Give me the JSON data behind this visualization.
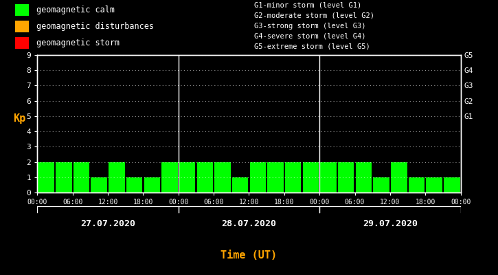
{
  "background_color": "#000000",
  "plot_bg_color": "#000000",
  "bar_color_calm": "#00ff00",
  "bar_color_disturbance": "#ffa500",
  "bar_color_storm": "#ff0000",
  "text_color": "#ffffff",
  "ylabel_color": "#ffa500",
  "xlabel_color": "#ffa500",
  "grid_color": "#ffffff",
  "separator_color": "#ffffff",
  "days": [
    "27.07.2020",
    "28.07.2020",
    "29.07.2020"
  ],
  "kp_values": [
    [
      2,
      2,
      2,
      1,
      2,
      1,
      1,
      2
    ],
    [
      2,
      2,
      2,
      1,
      2,
      2,
      2,
      2
    ],
    [
      2,
      2,
      2,
      1,
      2,
      1,
      1,
      1
    ]
  ],
  "ylim": [
    0,
    9
  ],
  "yticks": [
    0,
    1,
    2,
    3,
    4,
    5,
    6,
    7,
    8,
    9
  ],
  "right_yticks": [
    5,
    6,
    7,
    8,
    9
  ],
  "right_ylabels": [
    "G1",
    "G2",
    "G3",
    "G4",
    "G5"
  ],
  "legend_items": [
    {
      "label": "geomagnetic calm",
      "color": "#00ff00"
    },
    {
      "label": "geomagnetic disturbances",
      "color": "#ffa500"
    },
    {
      "label": "geomagnetic storm",
      "color": "#ff0000"
    }
  ],
  "right_text": [
    "G1-minor storm (level G1)",
    "G2-moderate storm (level G2)",
    "G3-strong storm (level G3)",
    "G4-severe storm (level G4)",
    "G5-extreme storm (level G5)"
  ],
  "xlabel": "Time (UT)",
  "ylabel": "Kp"
}
